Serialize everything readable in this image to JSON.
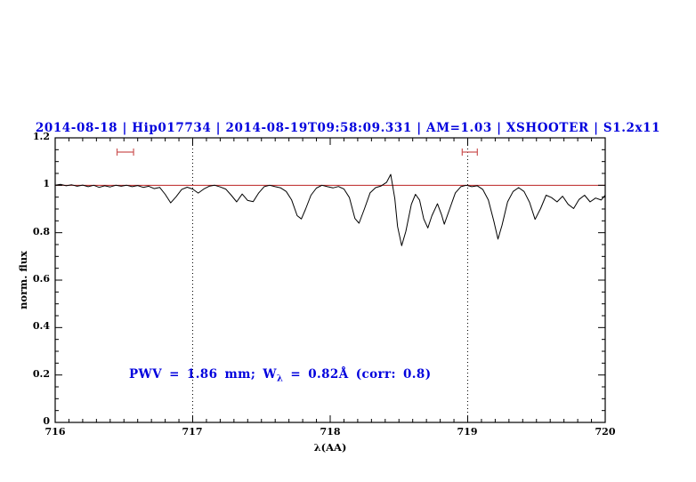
{
  "chart_data": {
    "type": "line",
    "title": "2014-08-18 | Hip017734 | 2014-08-19T09:58:09.331 | AM=1.03 | XSHOOTER | S1.2x11",
    "title_color": "#0000dd",
    "xlabel": "λ(AA)",
    "ylabel": "norm. flux",
    "xlim": [
      716,
      720
    ],
    "ylim": [
      0,
      1.2
    ],
    "x_ticks": [
      "716",
      "717",
      "718",
      "719",
      "720"
    ],
    "x_tick_values": [
      716,
      717,
      718,
      719,
      720
    ],
    "y_ticks": [
      "0",
      "0.2",
      "0.4",
      "0.6",
      "0.8",
      "1",
      "1.2"
    ],
    "y_tick_values": [
      0,
      0.2,
      0.4,
      0.6,
      0.8,
      1,
      1.2
    ],
    "x_minor_step": 0.1,
    "y_minor_step": 0.05,
    "dotted_vlines": [
      717,
      719
    ],
    "continuum_line": {
      "y": 1.0,
      "color": "#bb2222"
    },
    "range_markers": [
      {
        "x1": 716.45,
        "x2": 716.57,
        "y": 1.14,
        "color": "#cc5555"
      },
      {
        "x1": 718.96,
        "x2": 719.07,
        "y": 1.14,
        "color": "#cc5555"
      }
    ],
    "annotation": {
      "pre": "PWV = 1.86 mm; W",
      "sub": "λ",
      "post": " = 0.82Å (corr: 0.8)",
      "color": "#0000dd"
    },
    "series": [
      {
        "name": "spectrum",
        "color": "#000000",
        "points": [
          [
            716.0,
            1.0
          ],
          [
            716.04,
            1.004
          ],
          [
            716.08,
            0.998
          ],
          [
            716.12,
            1.002
          ],
          [
            716.16,
            0.996
          ],
          [
            716.2,
            1.001
          ],
          [
            716.24,
            0.994
          ],
          [
            716.28,
            1.0
          ],
          [
            716.32,
            0.991
          ],
          [
            716.36,
            0.998
          ],
          [
            716.4,
            0.993
          ],
          [
            716.44,
            1.0
          ],
          [
            716.48,
            0.996
          ],
          [
            716.52,
            1.0
          ],
          [
            716.56,
            0.994
          ],
          [
            716.6,
            0.999
          ],
          [
            716.64,
            0.991
          ],
          [
            716.68,
            0.996
          ],
          [
            716.72,
            0.986
          ],
          [
            716.76,
            0.991
          ],
          [
            716.8,
            0.962
          ],
          [
            716.84,
            0.926
          ],
          [
            716.88,
            0.952
          ],
          [
            716.92,
            0.982
          ],
          [
            716.96,
            0.992
          ],
          [
            717.0,
            0.984
          ],
          [
            717.04,
            0.967
          ],
          [
            717.08,
            0.984
          ],
          [
            717.12,
            0.996
          ],
          [
            717.16,
            1.0
          ],
          [
            717.2,
            0.993
          ],
          [
            717.24,
            0.984
          ],
          [
            717.28,
            0.958
          ],
          [
            717.32,
            0.93
          ],
          [
            717.36,
            0.963
          ],
          [
            717.4,
            0.936
          ],
          [
            717.44,
            0.931
          ],
          [
            717.48,
            0.968
          ],
          [
            717.52,
            0.994
          ],
          [
            717.56,
            1.0
          ],
          [
            717.6,
            0.994
          ],
          [
            717.64,
            0.989
          ],
          [
            717.68,
            0.974
          ],
          [
            717.72,
            0.938
          ],
          [
            717.76,
            0.872
          ],
          [
            717.79,
            0.858
          ],
          [
            717.82,
            0.898
          ],
          [
            717.86,
            0.958
          ],
          [
            717.9,
            0.988
          ],
          [
            717.94,
            1.0
          ],
          [
            717.98,
            0.994
          ],
          [
            718.02,
            0.989
          ],
          [
            718.06,
            0.995
          ],
          [
            718.1,
            0.984
          ],
          [
            718.14,
            0.948
          ],
          [
            718.18,
            0.86
          ],
          [
            718.21,
            0.84
          ],
          [
            718.25,
            0.902
          ],
          [
            718.29,
            0.968
          ],
          [
            718.33,
            0.99
          ],
          [
            718.37,
            0.997
          ],
          [
            718.41,
            1.012
          ],
          [
            718.44,
            1.046
          ],
          [
            718.47,
            0.944
          ],
          [
            718.49,
            0.826
          ],
          [
            718.52,
            0.745
          ],
          [
            718.55,
            0.806
          ],
          [
            718.59,
            0.92
          ],
          [
            718.62,
            0.962
          ],
          [
            718.65,
            0.938
          ],
          [
            718.68,
            0.858
          ],
          [
            718.71,
            0.82
          ],
          [
            718.74,
            0.872
          ],
          [
            718.78,
            0.922
          ],
          [
            718.81,
            0.876
          ],
          [
            718.83,
            0.836
          ],
          [
            718.87,
            0.902
          ],
          [
            718.91,
            0.968
          ],
          [
            718.95,
            0.994
          ],
          [
            718.99,
            1.0
          ],
          [
            719.03,
            0.994
          ],
          [
            719.07,
            0.998
          ],
          [
            719.11,
            0.982
          ],
          [
            719.15,
            0.938
          ],
          [
            719.19,
            0.848
          ],
          [
            719.22,
            0.773
          ],
          [
            719.25,
            0.832
          ],
          [
            719.29,
            0.93
          ],
          [
            719.33,
            0.974
          ],
          [
            719.37,
            0.99
          ],
          [
            719.41,
            0.974
          ],
          [
            719.45,
            0.928
          ],
          [
            719.49,
            0.856
          ],
          [
            719.53,
            0.902
          ],
          [
            719.57,
            0.958
          ],
          [
            719.61,
            0.948
          ],
          [
            719.65,
            0.93
          ],
          [
            719.69,
            0.954
          ],
          [
            719.73,
            0.92
          ],
          [
            719.77,
            0.902
          ],
          [
            719.81,
            0.94
          ],
          [
            719.85,
            0.958
          ],
          [
            719.89,
            0.93
          ],
          [
            719.93,
            0.946
          ],
          [
            719.97,
            0.938
          ],
          [
            720.0,
            0.958
          ]
        ]
      }
    ]
  }
}
